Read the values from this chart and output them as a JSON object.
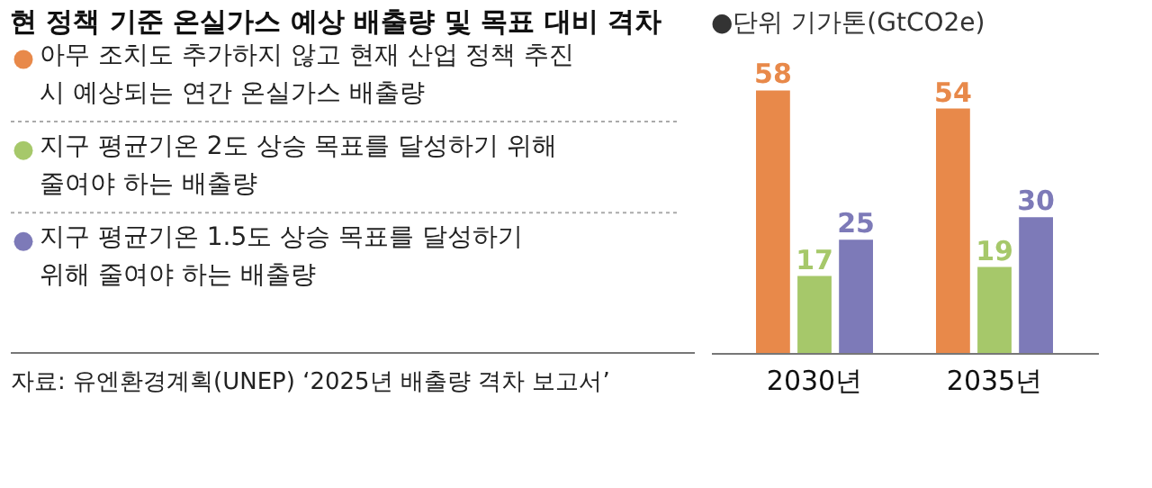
{
  "chart_data": {
    "type": "bar",
    "title": "현 정책 기준 온실가스 예상 배출량 및 목표 대비 격차",
    "ylabel": "●단위 기가톤(GtCO2e)",
    "categories": [
      "2030년",
      "2035년"
    ],
    "series": [
      {
        "name": "아무 조치도 추가하지 않고 현재 산업 정책 추진 시 예상되는 연간 온실가스 배출량",
        "color": "#e8894a",
        "values": [
          58,
          54
        ]
      },
      {
        "name": "지구 평균기온 2도 상승 목표를 달성하기 위해 줄여야 하는 배출량",
        "color": "#a6c86a",
        "values": [
          17,
          19
        ]
      },
      {
        "name": "지구 평균기온 1.5도 상승 목표를 달성하기 위해 줄여야 하는 배출량",
        "color": "#7d7ab8",
        "values": [
          25,
          30
        ]
      }
    ],
    "data_labels": true,
    "legend": "left",
    "grid": false,
    "annotations": [
      "자료: 유엔환경계획(UNEP) ‘2025년 배출량 격차 보고서’"
    ]
  }
}
